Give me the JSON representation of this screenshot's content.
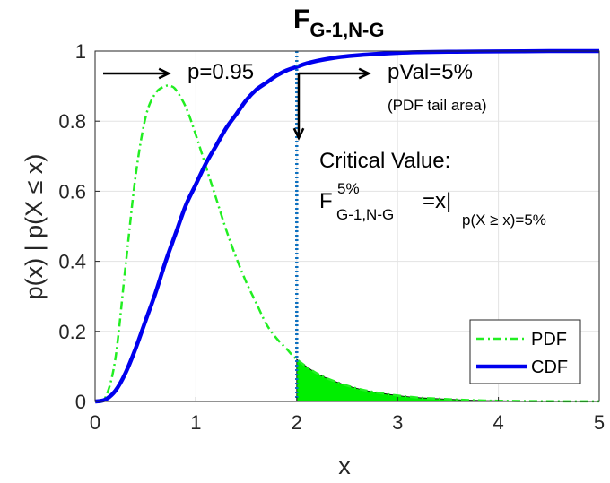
{
  "chart_data": {
    "type": "line",
    "title_main": "F",
    "title_sub": "G-1,N-G",
    "xlabel": "x",
    "ylabel": "p(x) | p(X ≤ x)",
    "xlim": [
      0,
      5
    ],
    "ylim": [
      0,
      1
    ],
    "xticks": [
      "0",
      "1",
      "2",
      "3",
      "4",
      "5"
    ],
    "yticks": [
      "0",
      "0.2",
      "0.4",
      "0.6",
      "0.8",
      "1"
    ],
    "grid": true,
    "legend_placement": "bottom-right",
    "critical_value": 2.0,
    "series": [
      {
        "name": "PDF",
        "style": "dash-dot",
        "color": "#22ee22",
        "x": [
          0,
          0.1,
          0.2,
          0.3,
          0.4,
          0.5,
          0.6,
          0.7,
          0.75,
          0.8,
          0.9,
          1.0,
          1.1,
          1.2,
          1.3,
          1.4,
          1.5,
          1.6,
          1.7,
          1.8,
          1.9,
          2.0,
          2.2,
          2.4,
          2.6,
          2.8,
          3.0,
          3.2,
          3.4,
          3.6,
          3.8,
          4.0,
          4.3,
          4.6,
          5.0
        ],
        "values": [
          0,
          0.01,
          0.12,
          0.38,
          0.64,
          0.81,
          0.88,
          0.9,
          0.9,
          0.89,
          0.84,
          0.76,
          0.67,
          0.58,
          0.49,
          0.41,
          0.34,
          0.28,
          0.22,
          0.18,
          0.15,
          0.12,
          0.08,
          0.055,
          0.037,
          0.025,
          0.017,
          0.011,
          0.008,
          0.005,
          0.003,
          0.002,
          0.001,
          0.0005,
          0.0002
        ]
      },
      {
        "name": "CDF",
        "style": "solid",
        "color": "#0000ee",
        "x": [
          0,
          0.1,
          0.2,
          0.3,
          0.4,
          0.5,
          0.6,
          0.7,
          0.8,
          0.9,
          1.0,
          1.1,
          1.2,
          1.3,
          1.4,
          1.5,
          1.6,
          1.7,
          1.8,
          1.9,
          2.0,
          2.1,
          2.2,
          2.4,
          2.6,
          2.8,
          3.0,
          3.2,
          3.5,
          4.0,
          4.5,
          5.0
        ],
        "values": [
          0,
          0.005,
          0.03,
          0.08,
          0.15,
          0.23,
          0.31,
          0.4,
          0.48,
          0.56,
          0.62,
          0.68,
          0.73,
          0.78,
          0.82,
          0.86,
          0.89,
          0.91,
          0.93,
          0.945,
          0.955,
          0.965,
          0.972,
          0.982,
          0.988,
          0.992,
          0.995,
          0.997,
          0.998,
          0.999,
          1.0,
          1.0
        ]
      }
    ],
    "annotations": {
      "p_label": "p=0.95",
      "pval_label": "pVal=5%",
      "pval_note": "(PDF tail area)",
      "crit_title": "Critical Value:",
      "crit_F": "F",
      "crit_sup": "5%",
      "crit_sub": "G-1,N-G",
      "crit_eq": "=x|",
      "crit_cond": "p(X ≥ x)=5%"
    },
    "colors": {
      "pdf": "#22ee22",
      "cdf": "#0000ee",
      "critical_line": "#0b6fbf",
      "tail_fill": "#00ee00"
    }
  }
}
